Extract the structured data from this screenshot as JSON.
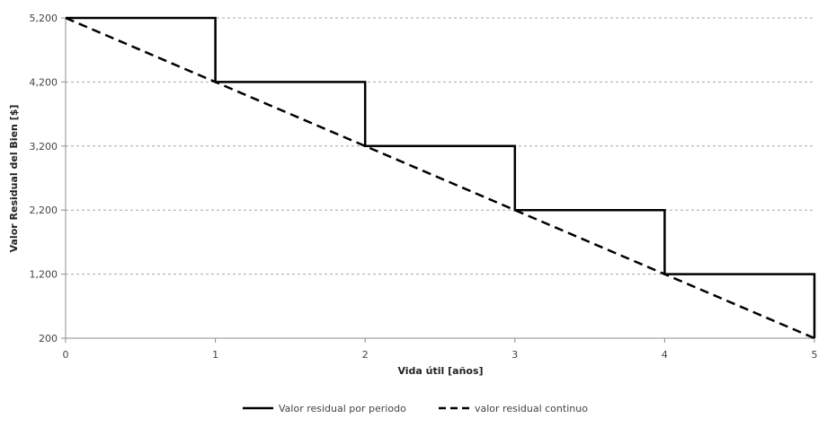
{
  "chart_data": {
    "type": "line",
    "xlabel": "Vida útil [años]",
    "ylabel": "Valor Residual del Bien [$]",
    "xlim": [
      0,
      5
    ],
    "ylim": [
      200,
      5200
    ],
    "x_ticks": [
      0,
      1,
      2,
      3,
      4,
      5
    ],
    "y_ticks": [
      200,
      1200,
      2200,
      3200,
      4200,
      5200
    ],
    "x_tick_labels": [
      "0",
      "1",
      "2",
      "3",
      "4",
      "5"
    ],
    "y_tick_labels": [
      "200",
      "1,200",
      "2,200",
      "3,200",
      "4,200",
      "5,200"
    ],
    "grid": "horizontal dashed",
    "legend_position": "bottom",
    "series": [
      {
        "name": "Valor residual por periodo",
        "style": "solid",
        "color": "#000000",
        "points": [
          [
            0,
            5200
          ],
          [
            1,
            5200
          ],
          [
            1,
            4200
          ],
          [
            2,
            4200
          ],
          [
            2,
            3200
          ],
          [
            3,
            3200
          ],
          [
            3,
            2200
          ],
          [
            4,
            2200
          ],
          [
            4,
            1200
          ],
          [
            5,
            1200
          ],
          [
            5,
            200
          ]
        ]
      },
      {
        "name": "valor residual continuo",
        "style": "dashed",
        "color": "#000000",
        "points": [
          [
            0,
            5200
          ],
          [
            5,
            200
          ]
        ]
      }
    ]
  }
}
